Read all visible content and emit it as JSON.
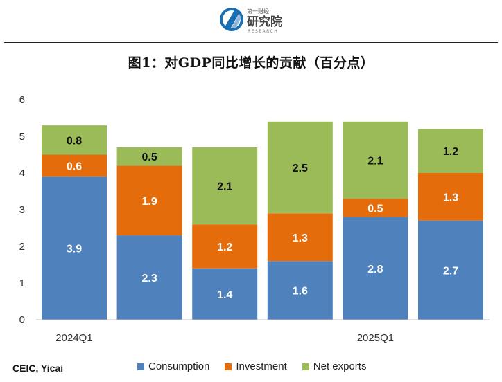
{
  "header": {
    "logo_cn_small": "第一财经",
    "logo_cn_big": "研究院",
    "logo_en": "RESEARCH"
  },
  "title": "图1：对GDP同比增长的贡献（百分点）",
  "source": "CEIC, Yicai",
  "colors": {
    "consumption": "#4f81bd",
    "investment": "#e46c0a",
    "net_exports": "#9bbb59"
  },
  "chart_data": {
    "type": "bar",
    "stacked": true,
    "categories": [
      "2024Q1",
      "",
      "",
      "",
      "2025Q1",
      ""
    ],
    "series": [
      {
        "name": "Consumption",
        "values": [
          3.9,
          2.3,
          1.4,
          1.6,
          2.8,
          2.7
        ]
      },
      {
        "name": "Investment",
        "values": [
          0.6,
          1.9,
          1.2,
          1.3,
          0.5,
          1.3
        ]
      },
      {
        "name": "Net exports",
        "values": [
          0.8,
          0.5,
          2.1,
          2.5,
          2.1,
          1.2
        ]
      }
    ],
    "bar_totals": [
      5.3,
      4.7,
      4.6,
      5.4,
      5.4,
      5.2
    ],
    "ylim": [
      0,
      6
    ],
    "yticks": [
      0,
      1,
      2,
      3,
      4,
      5,
      6
    ],
    "legend_position": "bottom",
    "grid": false
  }
}
